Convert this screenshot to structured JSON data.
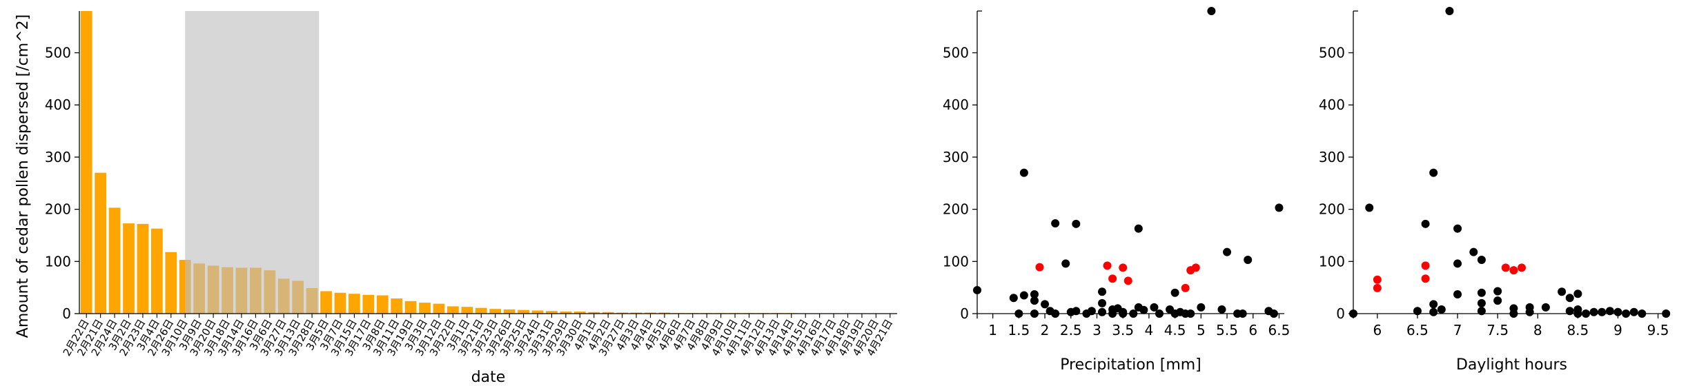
{
  "chart_data": [
    {
      "type": "bar",
      "xlabel": "date",
      "ylabel": "Amount of cedar pollen dispersed [/cm^2]",
      "ylim": [
        0,
        580
      ],
      "yticks": [
        0,
        100,
        200,
        300,
        400,
        500
      ],
      "colors": {
        "bar": "#FFA500",
        "highlight_band": "#BEBEBE"
      },
      "highlight_categories": [
        "3月10日",
        "3月28日"
      ],
      "categories": [
        "2月22日",
        "2月21日",
        "2月24日",
        "3月2日",
        "2月23日",
        "3月4日",
        "2月26日",
        "3月10日",
        "3月9日",
        "3月20日",
        "3月18日",
        "3月14日",
        "3月16日",
        "3月6日",
        "3月27日",
        "3月13日",
        "3月28日",
        "3月5日",
        "3月7日",
        "3月15日",
        "3月17日",
        "3月8日",
        "3月11日",
        "3月19日",
        "3月3日",
        "3月12日",
        "3月22日",
        "3月1日",
        "3月21日",
        "3月23日",
        "3月26日",
        "3月25日",
        "3月24日",
        "3月31日",
        "3月29日",
        "3月30日",
        "4月1日",
        "4月2日",
        "3月27日",
        "4月3日",
        "4月4日",
        "4月5日",
        "4月6日",
        "4月7日",
        "4月8日",
        "4月9日",
        "4月10日",
        "4月11日",
        "4月12日",
        "4月13日",
        "4月14日",
        "4月15日",
        "4月16日",
        "4月17日",
        "4月18日",
        "4月19日",
        "4月20日",
        "4月21日"
      ],
      "values": [
        580,
        270,
        203,
        173,
        172,
        163,
        118,
        103,
        96,
        92,
        89,
        88,
        88,
        83,
        67,
        63,
        49,
        43,
        40,
        38,
        36,
        35,
        29,
        24,
        21,
        19,
        14,
        13,
        11,
        9,
        8,
        7,
        6,
        5,
        4,
        4,
        3,
        3,
        2,
        2,
        2,
        2,
        1,
        1,
        1,
        1,
        1,
        1,
        1,
        1,
        1,
        0,
        0,
        0,
        0,
        0,
        0,
        0
      ]
    },
    {
      "type": "scatter",
      "xlabel": "Precipitation [mm]",
      "ylabel": "",
      "xlim": [
        0.7,
        6.6
      ],
      "ylim": [
        0,
        580
      ],
      "xticks": [
        1.0,
        1.5,
        2.0,
        2.5,
        3.0,
        3.5,
        4.0,
        4.5,
        5.0,
        5.5,
        6.0,
        6.5
      ],
      "yticks": [
        0,
        100,
        200,
        300,
        400,
        500
      ],
      "colors": {
        "normal": "#000000",
        "highlight": "#FF0000"
      },
      "series": [
        {
          "values": [
            [
              0.7,
              45
            ],
            [
              1.4,
              30
            ],
            [
              1.5,
              0
            ],
            [
              1.6,
              270
            ],
            [
              1.6,
              35
            ],
            [
              1.8,
              37
            ],
            [
              1.8,
              25
            ],
            [
              1.8,
              0
            ],
            [
              2.0,
              18
            ],
            [
              2.1,
              5
            ],
            [
              2.2,
              173
            ],
            [
              2.2,
              0
            ],
            [
              2.4,
              96
            ],
            [
              2.5,
              3
            ],
            [
              2.6,
              172
            ],
            [
              2.6,
              5
            ],
            [
              2.8,
              0
            ],
            [
              2.9,
              5
            ],
            [
              3.1,
              42
            ],
            [
              3.1,
              20
            ],
            [
              3.1,
              3
            ],
            [
              3.3,
              0
            ],
            [
              3.3,
              8
            ],
            [
              3.4,
              10
            ],
            [
              3.5,
              3
            ],
            [
              3.5,
              0
            ],
            [
              3.7,
              0
            ],
            [
              3.8,
              163
            ],
            [
              3.8,
              12
            ],
            [
              3.9,
              7
            ],
            [
              4.1,
              12
            ],
            [
              4.2,
              0
            ],
            [
              4.4,
              8
            ],
            [
              4.5,
              40
            ],
            [
              4.5,
              0
            ],
            [
              4.6,
              3
            ],
            [
              4.7,
              0
            ],
            [
              4.8,
              0
            ],
            [
              5.0,
              12
            ],
            [
              5.2,
              580
            ],
            [
              5.4,
              8
            ],
            [
              5.5,
              118
            ],
            [
              5.7,
              0
            ],
            [
              5.8,
              0
            ],
            [
              5.9,
              103
            ],
            [
              6.3,
              5
            ],
            [
              6.4,
              0
            ],
            [
              6.5,
              203
            ]
          ]
        },
        {
          "values": [
            [
              1.9,
              89
            ],
            [
              3.2,
              92
            ],
            [
              3.3,
              67
            ],
            [
              3.5,
              88
            ],
            [
              3.6,
              63
            ],
            [
              4.7,
              49
            ],
            [
              4.8,
              83
            ],
            [
              4.9,
              88
            ]
          ]
        }
      ]
    },
    {
      "type": "scatter",
      "xlabel": "Daylight hours",
      "ylabel": "",
      "xlim": [
        5.7,
        9.65
      ],
      "ylim": [
        0,
        580
      ],
      "xticks": [
        6.0,
        6.5,
        7.0,
        7.5,
        8.0,
        8.5,
        9.0,
        9.5
      ],
      "yticks": [
        0,
        100,
        200,
        300,
        400,
        500
      ],
      "colors": {
        "normal": "#000000",
        "highlight": "#FF0000"
      },
      "series": [
        {
          "values": [
            [
              5.7,
              0
            ],
            [
              5.9,
              203
            ],
            [
              6.5,
              5
            ],
            [
              6.6,
              172
            ],
            [
              6.7,
              270
            ],
            [
              6.7,
              18
            ],
            [
              6.7,
              3
            ],
            [
              6.8,
              8
            ],
            [
              6.9,
              580
            ],
            [
              7.0,
              163
            ],
            [
              7.0,
              96
            ],
            [
              7.0,
              37
            ],
            [
              7.2,
              118
            ],
            [
              7.3,
              103
            ],
            [
              7.3,
              40
            ],
            [
              7.3,
              20
            ],
            [
              7.3,
              5
            ],
            [
              7.5,
              43
            ],
            [
              7.5,
              25
            ],
            [
              7.7,
              10
            ],
            [
              7.7,
              0
            ],
            [
              7.9,
              12
            ],
            [
              7.9,
              3
            ],
            [
              8.1,
              12
            ],
            [
              8.3,
              42
            ],
            [
              8.4,
              30
            ],
            [
              8.4,
              5
            ],
            [
              8.5,
              38
            ],
            [
              8.5,
              8
            ],
            [
              8.5,
              0
            ],
            [
              8.6,
              0
            ],
            [
              8.7,
              3
            ],
            [
              8.8,
              3
            ],
            [
              8.9,
              5
            ],
            [
              9.0,
              3
            ],
            [
              9.1,
              0
            ],
            [
              9.2,
              3
            ],
            [
              9.3,
              0
            ],
            [
              9.6,
              0
            ]
          ]
        },
        {
          "values": [
            [
              6.0,
              65
            ],
            [
              6.0,
              49
            ],
            [
              6.6,
              92
            ],
            [
              6.6,
              67
            ],
            [
              7.6,
              88
            ],
            [
              7.7,
              83
            ],
            [
              7.8,
              88
            ]
          ]
        }
      ]
    }
  ]
}
